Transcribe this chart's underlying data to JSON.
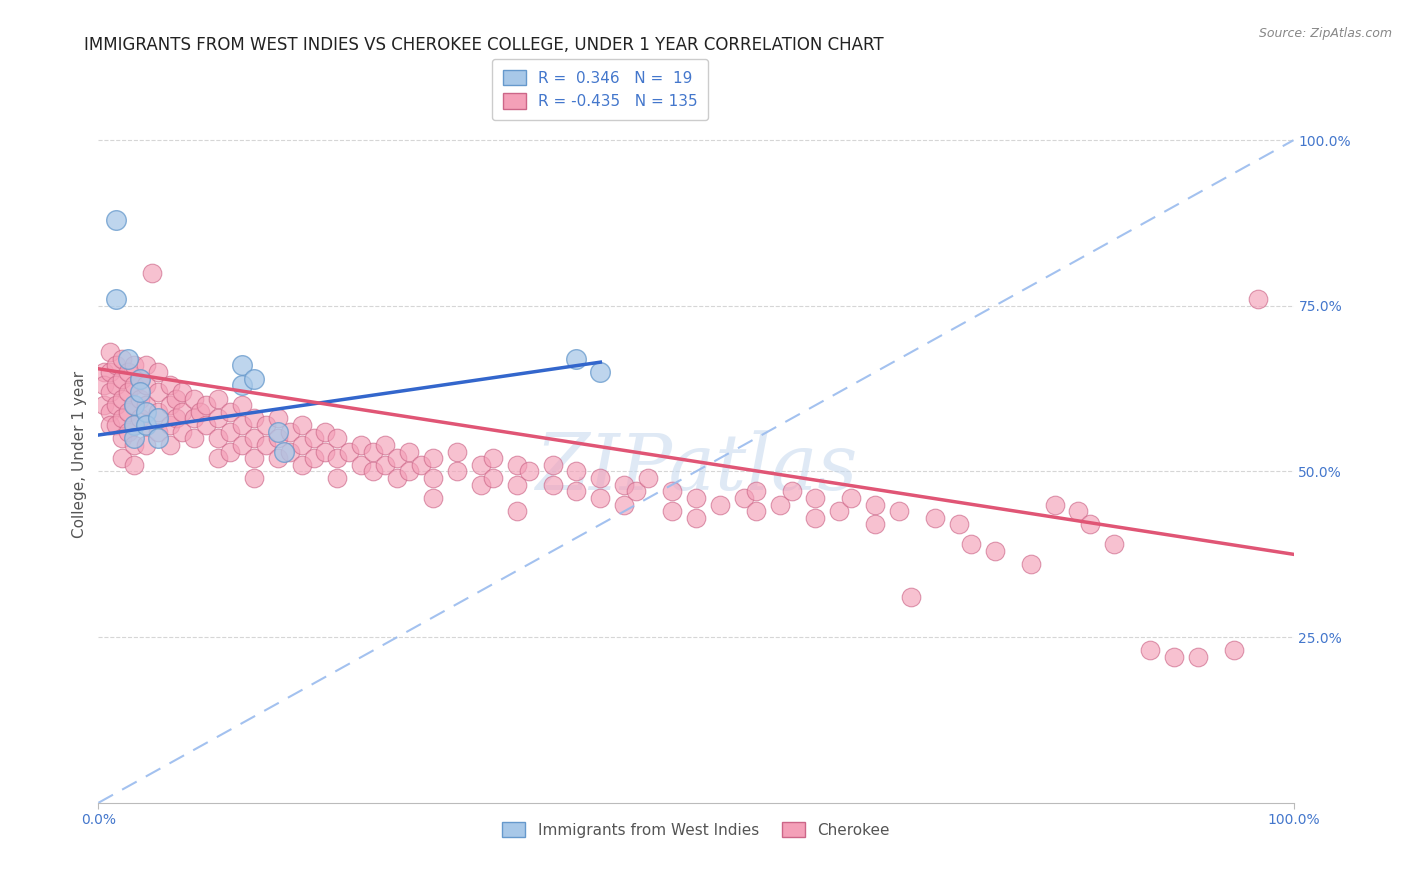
{
  "title": "IMMIGRANTS FROM WEST INDIES VS CHEROKEE COLLEGE, UNDER 1 YEAR CORRELATION CHART",
  "source_text": "Source: ZipAtlas.com",
  "ylabel": "College, Under 1 year",
  "xlim": [
    0.0,
    1.0
  ],
  "ylim": [
    0.0,
    1.05
  ],
  "yticks": [
    0.25,
    0.5,
    0.75,
    1.0
  ],
  "ytick_labels": [
    "25.0%",
    "50.0%",
    "75.0%",
    "100.0%"
  ],
  "xtick_labels": [
    "0.0%",
    "100.0%"
  ],
  "legend_label_blue": "Immigrants from West Indies",
  "legend_label_pink": "Cherokee",
  "watermark": "ZIPatlas",
  "blue_color": "#a8c8e8",
  "pink_color": "#f4a0b8",
  "blue_line_color": "#3366cc",
  "pink_line_color": "#e05575",
  "blue_dashed_color": "#99bbee",
  "background_color": "#ffffff",
  "grid_color": "#cccccc",
  "title_color": "#222222",
  "axis_label_color": "#4477cc",
  "blue_scatter": [
    [
      0.015,
      0.88
    ],
    [
      0.015,
      0.76
    ],
    [
      0.025,
      0.67
    ],
    [
      0.03,
      0.6
    ],
    [
      0.03,
      0.57
    ],
    [
      0.03,
      0.55
    ],
    [
      0.035,
      0.64
    ],
    [
      0.035,
      0.62
    ],
    [
      0.04,
      0.59
    ],
    [
      0.04,
      0.57
    ],
    [
      0.05,
      0.58
    ],
    [
      0.05,
      0.55
    ],
    [
      0.12,
      0.66
    ],
    [
      0.12,
      0.63
    ],
    [
      0.13,
      0.64
    ],
    [
      0.15,
      0.56
    ],
    [
      0.155,
      0.53
    ],
    [
      0.4,
      0.67
    ],
    [
      0.42,
      0.65
    ]
  ],
  "pink_scatter": [
    [
      0.005,
      0.65
    ],
    [
      0.005,
      0.63
    ],
    [
      0.005,
      0.6
    ],
    [
      0.01,
      0.68
    ],
    [
      0.01,
      0.65
    ],
    [
      0.01,
      0.62
    ],
    [
      0.01,
      0.59
    ],
    [
      0.01,
      0.57
    ],
    [
      0.015,
      0.66
    ],
    [
      0.015,
      0.63
    ],
    [
      0.015,
      0.6
    ],
    [
      0.015,
      0.57
    ],
    [
      0.02,
      0.67
    ],
    [
      0.02,
      0.64
    ],
    [
      0.02,
      0.61
    ],
    [
      0.02,
      0.58
    ],
    [
      0.02,
      0.55
    ],
    [
      0.02,
      0.52
    ],
    [
      0.025,
      0.65
    ],
    [
      0.025,
      0.62
    ],
    [
      0.025,
      0.59
    ],
    [
      0.025,
      0.56
    ],
    [
      0.03,
      0.66
    ],
    [
      0.03,
      0.63
    ],
    [
      0.03,
      0.6
    ],
    [
      0.03,
      0.57
    ],
    [
      0.03,
      0.54
    ],
    [
      0.03,
      0.51
    ],
    [
      0.035,
      0.64
    ],
    [
      0.035,
      0.61
    ],
    [
      0.035,
      0.58
    ],
    [
      0.04,
      0.66
    ],
    [
      0.04,
      0.63
    ],
    [
      0.04,
      0.6
    ],
    [
      0.04,
      0.57
    ],
    [
      0.04,
      0.54
    ],
    [
      0.045,
      0.8
    ],
    [
      0.05,
      0.65
    ],
    [
      0.05,
      0.62
    ],
    [
      0.05,
      0.59
    ],
    [
      0.05,
      0.56
    ],
    [
      0.06,
      0.63
    ],
    [
      0.06,
      0.6
    ],
    [
      0.06,
      0.57
    ],
    [
      0.06,
      0.54
    ],
    [
      0.065,
      0.61
    ],
    [
      0.065,
      0.58
    ],
    [
      0.07,
      0.62
    ],
    [
      0.07,
      0.59
    ],
    [
      0.07,
      0.56
    ],
    [
      0.08,
      0.61
    ],
    [
      0.08,
      0.58
    ],
    [
      0.08,
      0.55
    ],
    [
      0.085,
      0.59
    ],
    [
      0.09,
      0.6
    ],
    [
      0.09,
      0.57
    ],
    [
      0.1,
      0.61
    ],
    [
      0.1,
      0.58
    ],
    [
      0.1,
      0.55
    ],
    [
      0.1,
      0.52
    ],
    [
      0.11,
      0.59
    ],
    [
      0.11,
      0.56
    ],
    [
      0.11,
      0.53
    ],
    [
      0.12,
      0.6
    ],
    [
      0.12,
      0.57
    ],
    [
      0.12,
      0.54
    ],
    [
      0.13,
      0.58
    ],
    [
      0.13,
      0.55
    ],
    [
      0.13,
      0.52
    ],
    [
      0.13,
      0.49
    ],
    [
      0.14,
      0.57
    ],
    [
      0.14,
      0.54
    ],
    [
      0.15,
      0.58
    ],
    [
      0.15,
      0.55
    ],
    [
      0.15,
      0.52
    ],
    [
      0.16,
      0.56
    ],
    [
      0.16,
      0.53
    ],
    [
      0.17,
      0.57
    ],
    [
      0.17,
      0.54
    ],
    [
      0.17,
      0.51
    ],
    [
      0.18,
      0.55
    ],
    [
      0.18,
      0.52
    ],
    [
      0.19,
      0.56
    ],
    [
      0.19,
      0.53
    ],
    [
      0.2,
      0.55
    ],
    [
      0.2,
      0.52
    ],
    [
      0.2,
      0.49
    ],
    [
      0.21,
      0.53
    ],
    [
      0.22,
      0.54
    ],
    [
      0.22,
      0.51
    ],
    [
      0.23,
      0.53
    ],
    [
      0.23,
      0.5
    ],
    [
      0.24,
      0.54
    ],
    [
      0.24,
      0.51
    ],
    [
      0.25,
      0.52
    ],
    [
      0.25,
      0.49
    ],
    [
      0.26,
      0.53
    ],
    [
      0.26,
      0.5
    ],
    [
      0.27,
      0.51
    ],
    [
      0.28,
      0.52
    ],
    [
      0.28,
      0.49
    ],
    [
      0.28,
      0.46
    ],
    [
      0.3,
      0.53
    ],
    [
      0.3,
      0.5
    ],
    [
      0.32,
      0.51
    ],
    [
      0.32,
      0.48
    ],
    [
      0.33,
      0.52
    ],
    [
      0.33,
      0.49
    ],
    [
      0.35,
      0.51
    ],
    [
      0.35,
      0.48
    ],
    [
      0.35,
      0.44
    ],
    [
      0.36,
      0.5
    ],
    [
      0.38,
      0.51
    ],
    [
      0.38,
      0.48
    ],
    [
      0.4,
      0.5
    ],
    [
      0.4,
      0.47
    ],
    [
      0.42,
      0.49
    ],
    [
      0.42,
      0.46
    ],
    [
      0.44,
      0.48
    ],
    [
      0.44,
      0.45
    ],
    [
      0.45,
      0.47
    ],
    [
      0.46,
      0.49
    ],
    [
      0.48,
      0.47
    ],
    [
      0.48,
      0.44
    ],
    [
      0.5,
      0.46
    ],
    [
      0.5,
      0.43
    ],
    [
      0.52,
      0.45
    ],
    [
      0.54,
      0.46
    ],
    [
      0.55,
      0.47
    ],
    [
      0.55,
      0.44
    ],
    [
      0.57,
      0.45
    ],
    [
      0.58,
      0.47
    ],
    [
      0.6,
      0.46
    ],
    [
      0.6,
      0.43
    ],
    [
      0.62,
      0.44
    ],
    [
      0.63,
      0.46
    ],
    [
      0.65,
      0.45
    ],
    [
      0.65,
      0.42
    ],
    [
      0.67,
      0.44
    ],
    [
      0.68,
      0.31
    ],
    [
      0.7,
      0.43
    ],
    [
      0.72,
      0.42
    ],
    [
      0.73,
      0.39
    ],
    [
      0.75,
      0.38
    ],
    [
      0.78,
      0.36
    ],
    [
      0.8,
      0.45
    ],
    [
      0.82,
      0.44
    ],
    [
      0.83,
      0.42
    ],
    [
      0.85,
      0.39
    ],
    [
      0.88,
      0.23
    ],
    [
      0.9,
      0.22
    ],
    [
      0.92,
      0.22
    ],
    [
      0.95,
      0.23
    ],
    [
      0.97,
      0.76
    ]
  ],
  "blue_line_x": [
    0.0,
    0.42
  ],
  "blue_line_y_start": 0.555,
  "blue_line_y_end": 0.665,
  "blue_dashed_line_x": [
    0.0,
    1.0
  ],
  "blue_dashed_line_y_start": 0.0,
  "blue_dashed_line_y_end": 1.0,
  "pink_line_x": [
    0.0,
    1.0
  ],
  "pink_line_y_start": 0.655,
  "pink_line_y_end": 0.375,
  "title_fontsize": 12,
  "axis_fontsize": 11,
  "tick_fontsize": 10,
  "legend_fontsize": 11
}
